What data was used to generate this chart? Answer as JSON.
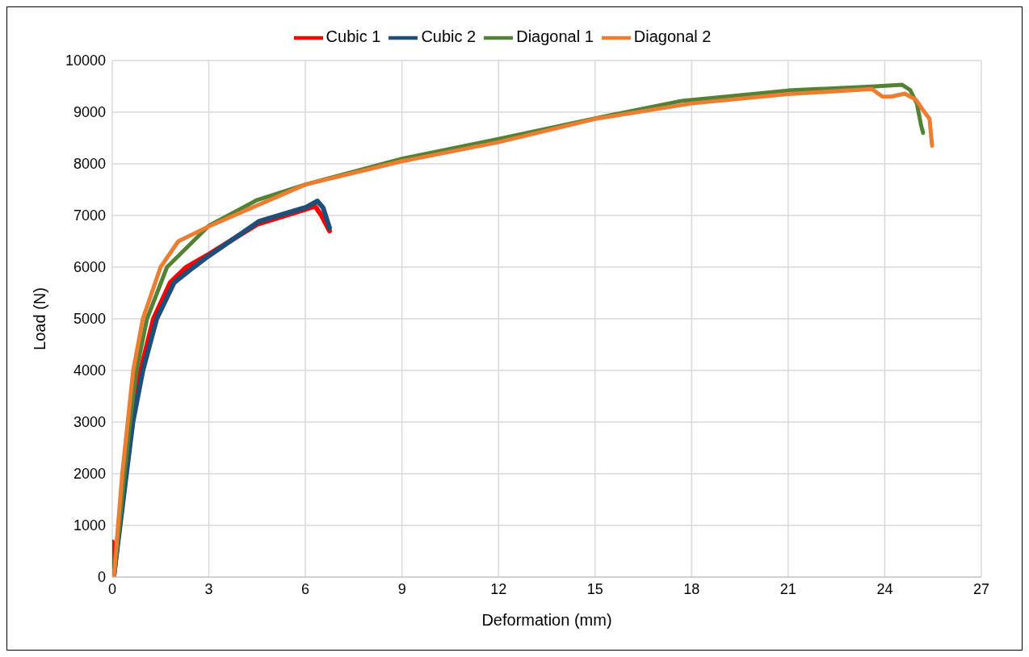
{
  "chart_data": {
    "type": "line",
    "xlabel": "Deformation (mm)",
    "ylabel": "Load (N)",
    "xlim": [
      0,
      27
    ],
    "xticks": [
      0,
      3,
      6,
      9,
      12,
      15,
      18,
      21,
      24,
      27
    ],
    "ylim": [
      0,
      10000
    ],
    "yticks": [
      0,
      1000,
      2000,
      3000,
      4000,
      5000,
      6000,
      7000,
      8000,
      9000,
      10000
    ],
    "grid": true,
    "legend": "top",
    "marker": "none",
    "line_style": "solid",
    "series": [
      {
        "name": "Cubic 1",
        "color": "#ff0000",
        "x": [
          0,
          0.05,
          0.4,
          0.6,
          0.88,
          1.28,
          1.8,
          2.3,
          3,
          4.5,
          6,
          6.3,
          6.5,
          6.75
        ],
        "values": [
          680,
          30,
          2000,
          3000,
          4000,
          5000,
          5700,
          6000,
          6250,
          6830,
          7120,
          7180,
          7000,
          6700
        ]
      },
      {
        "name": "Cubic 2",
        "color": "#1f4e79",
        "x": [
          0.05,
          0.44,
          0.64,
          0.95,
          1.38,
          1.92,
          2.53,
          3,
          4.57,
          6.02,
          6.37,
          6.55,
          6.75
        ],
        "values": [
          30,
          2000,
          3000,
          4000,
          5000,
          5700,
          6000,
          6220,
          6890,
          7160,
          7280,
          7150,
          6760
        ]
      },
      {
        "name": "Diagonal 1",
        "color": "#548235",
        "x": [
          0.05,
          0.22,
          0.38,
          0.55,
          0.75,
          1.08,
          1.7,
          3,
          4.5,
          6,
          9,
          12,
          15,
          17.7,
          21,
          23.7,
          24.54,
          24.79,
          25.0,
          25.13,
          25.19
        ],
        "values": [
          0,
          1000,
          2000,
          3000,
          4000,
          5000,
          6000,
          6800,
          7300,
          7600,
          8100,
          8480,
          8880,
          9220,
          9420,
          9500,
          9530,
          9430,
          9160,
          8740,
          8600
        ]
      },
      {
        "name": "Diagonal 2",
        "color": "#ed7d31",
        "x": [
          0.05,
          0.18,
          0.31,
          0.48,
          0.65,
          0.95,
          1.5,
          2.05,
          3,
          6,
          9,
          12,
          15,
          18,
          21,
          23.6,
          23.93,
          24.2,
          24.62,
          24.97,
          25.2,
          25.39,
          25.47
        ],
        "values": [
          0,
          1000,
          2000,
          3000,
          4000,
          5000,
          6000,
          6500,
          6790,
          7600,
          8050,
          8420,
          8870,
          9170,
          9350,
          9450,
          9300,
          9300,
          9360,
          9240,
          9030,
          8870,
          8350
        ]
      }
    ]
  }
}
